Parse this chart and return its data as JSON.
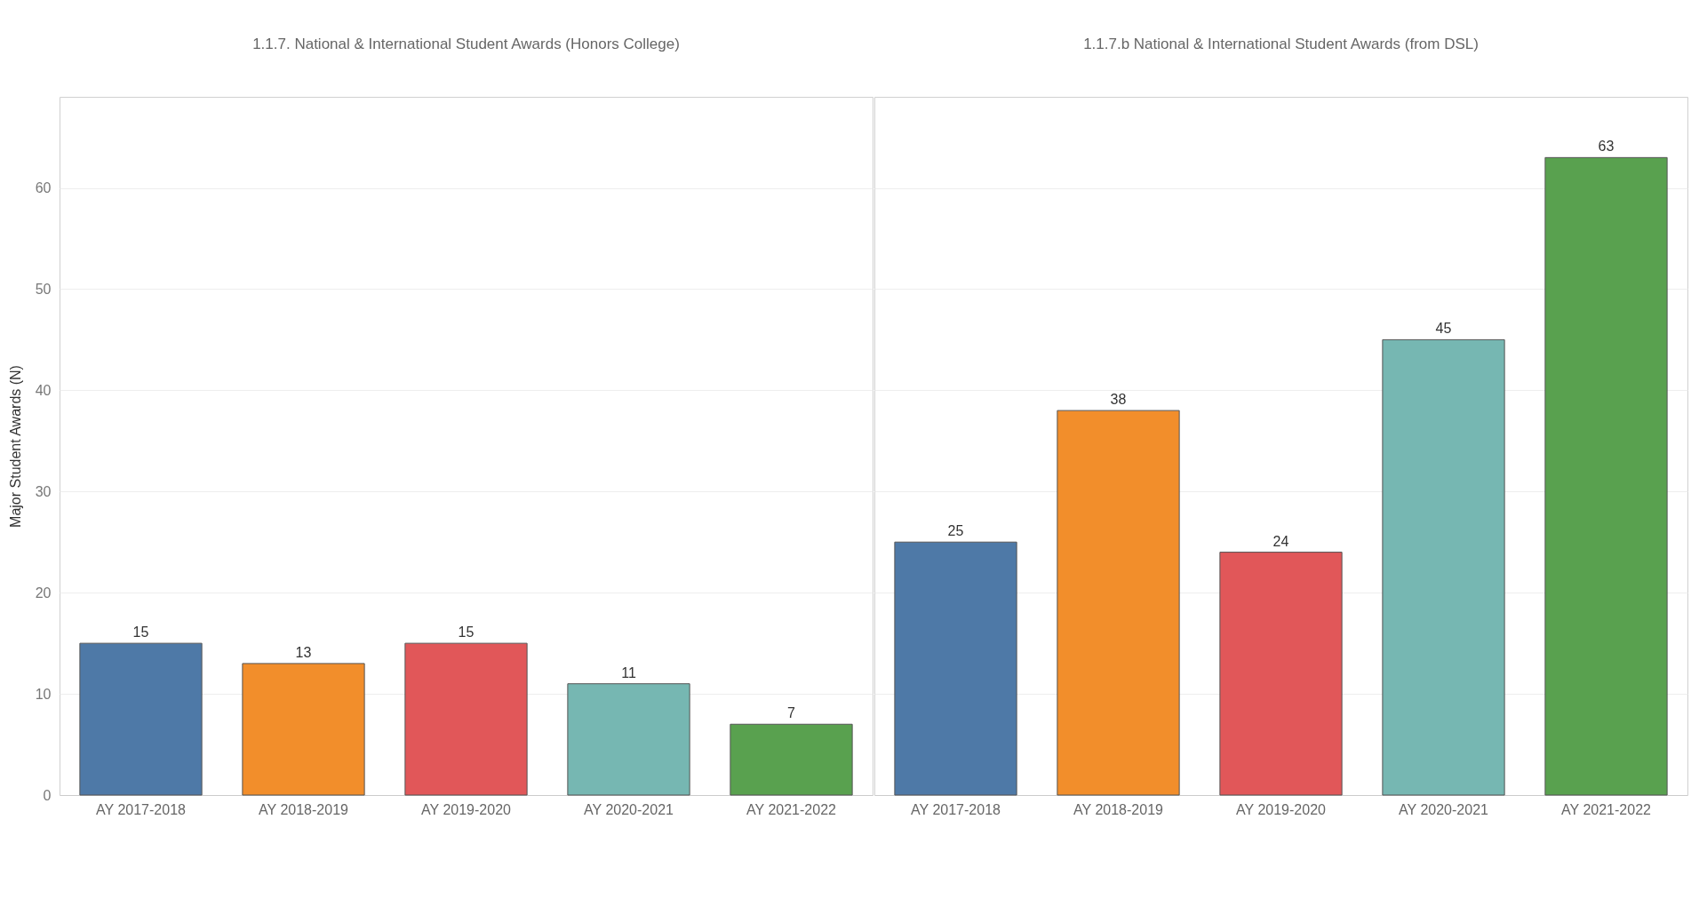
{
  "chart_data": [
    {
      "type": "bar",
      "title": "1.1.7. National & International Student Awards (Honors College)",
      "ylabel": "Major Student Awards (N)",
      "categories": [
        "AY 2017-2018",
        "AY 2018-2019",
        "AY 2019-2020",
        "AY 2020-2021",
        "AY 2021-2022"
      ],
      "values": [
        15,
        13,
        15,
        11,
        7
      ],
      "colors": [
        "#4e79a7",
        "#f28e2b",
        "#e15759",
        "#76b7b2",
        "#59a14f"
      ],
      "ylim": [
        0,
        69
      ],
      "yticks": [
        0,
        10,
        20,
        30,
        40,
        50,
        60
      ],
      "grid": "y",
      "data_labels": true
    },
    {
      "type": "bar",
      "title": "1.1.7.b National & International Student Awards (from DSL)",
      "categories": [
        "AY 2017-2018",
        "AY 2018-2019",
        "AY 2019-2020",
        "AY 2020-2021",
        "AY 2021-2022"
      ],
      "values": [
        25,
        38,
        24,
        45,
        63
      ],
      "colors": [
        "#4e79a7",
        "#f28e2b",
        "#e15759",
        "#76b7b2",
        "#59a14f"
      ],
      "ylim": [
        0,
        69
      ],
      "yticks": [
        0,
        10,
        20,
        30,
        40,
        50,
        60
      ],
      "grid": "y",
      "tick_labels": "x",
      "data_labels": true
    }
  ]
}
